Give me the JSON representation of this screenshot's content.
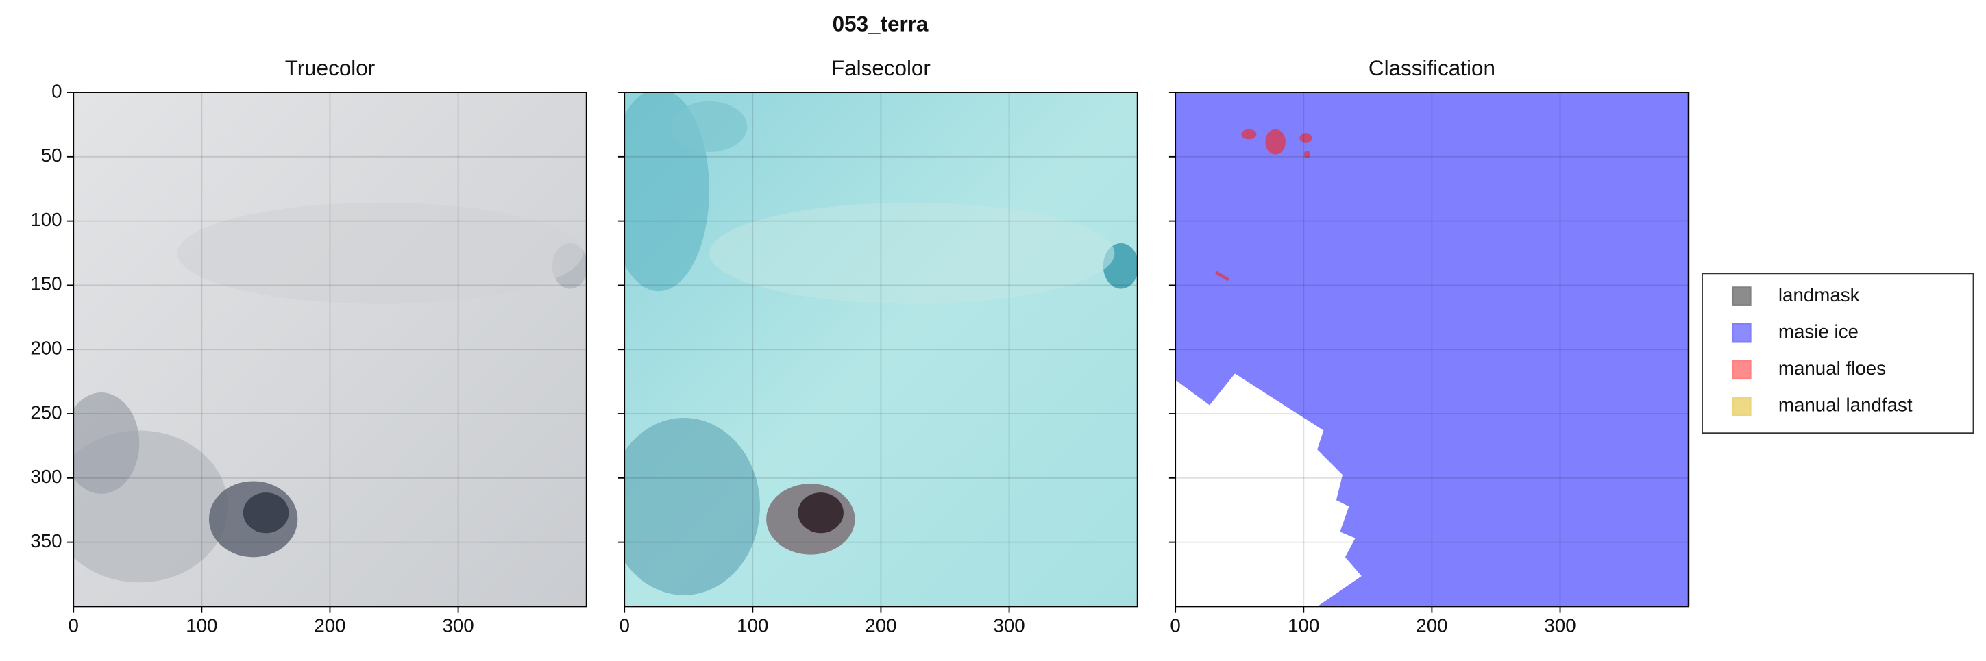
{
  "suptitle": "053_terra",
  "chart_data": [
    {
      "type": "image",
      "title": "Truecolor",
      "xlim": [
        0,
        400
      ],
      "ylim": [
        400,
        0
      ],
      "xticks": [
        0,
        100,
        200,
        300
      ],
      "yticks": [
        0,
        50,
        100,
        150,
        200,
        250,
        300,
        350
      ],
      "grid": true,
      "show_ytick_labels": true
    },
    {
      "type": "image",
      "title": "Falsecolor",
      "xlim": [
        0,
        400
      ],
      "ylim": [
        400,
        0
      ],
      "xticks": [
        0,
        100,
        200,
        300
      ],
      "yticks": [
        0,
        50,
        100,
        150,
        200,
        250,
        300,
        350
      ],
      "grid": true,
      "show_ytick_labels": false
    },
    {
      "type": "image",
      "title": "Classification",
      "xlim": [
        0,
        400
      ],
      "ylim": [
        400,
        0
      ],
      "xticks": [
        0,
        100,
        200,
        300
      ],
      "yticks": [
        0,
        50,
        100,
        150,
        200,
        250,
        300,
        350
      ],
      "grid": true,
      "show_ytick_labels": false,
      "legend_position": "right",
      "series": [
        {
          "name": "landmask",
          "color": "#808080"
        },
        {
          "name": "masie ice",
          "color": "#8080ff"
        },
        {
          "name": "manual floes",
          "color": "#ff8080"
        },
        {
          "name": "manual landfast",
          "color": "#ecd57a"
        }
      ]
    }
  ]
}
